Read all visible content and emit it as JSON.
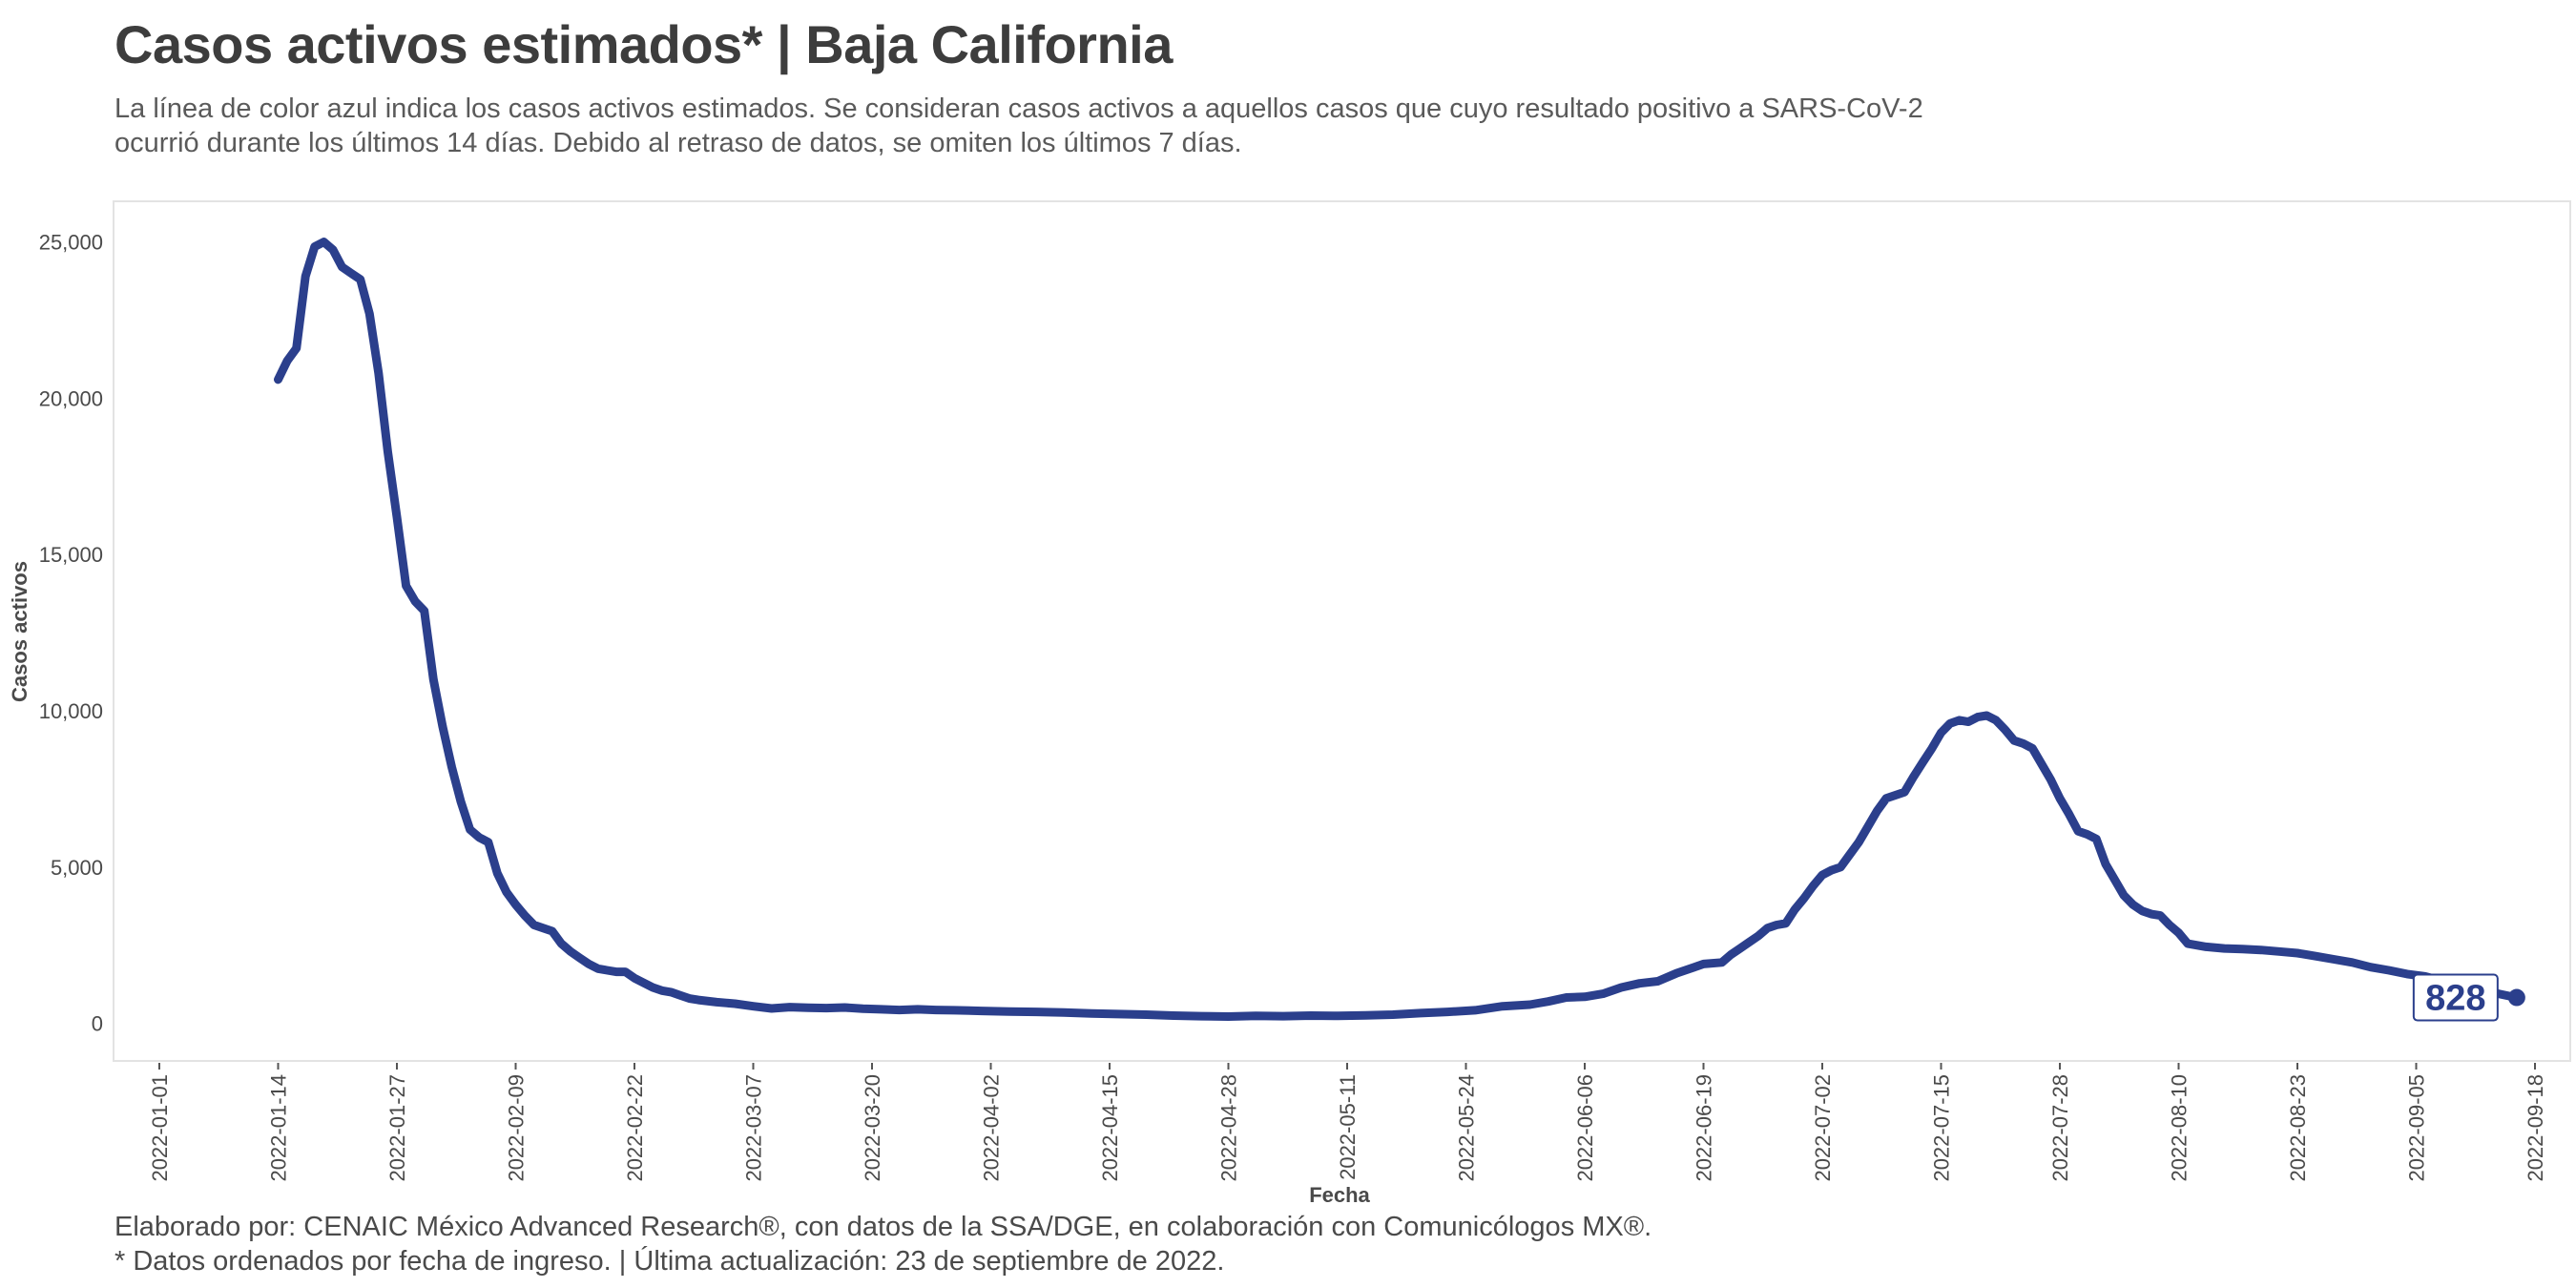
{
  "title": "Casos activos estimados* | Baja California",
  "subtitle": "La línea de color azul indica los casos activos estimados. Se consideran casos activos a aquellos casos que cuyo resultado positivo a SARS-CoV-2 ocurrió durante los últimos 14 días. Debido al retraso de datos, se omiten los últimos 7 días.",
  "footer": {
    "line1": "Elaborado por: CENAIC México Advanced Research®, con datos de la SSA/DGE, en colaboración con Comunicólogos MX®.",
    "line2": "* Datos ordenados por fecha de ingreso. | Última actualización: 23 de septiembre de 2022."
  },
  "colors": {
    "line": "#2b3f8c",
    "panel_border": "#e3e3e3",
    "label_border": "#2b3f8c"
  },
  "chart_data": {
    "type": "line",
    "xlabel": "Fecha",
    "ylabel": "Casos activos",
    "x_start": "2022-01-01",
    "x_end": "2022-09-18",
    "ylim": [
      -1200,
      26300
    ],
    "grid": false,
    "yticks": [
      0,
      5000,
      10000,
      15000,
      20000,
      25000
    ],
    "ytick_labels": [
      "0",
      "5,000",
      "10,000",
      "15,000",
      "20,000",
      "25,000"
    ],
    "xticks": [
      "2022-01-01",
      "2022-01-14",
      "2022-01-27",
      "2022-02-09",
      "2022-02-22",
      "2022-03-07",
      "2022-03-20",
      "2022-04-02",
      "2022-04-15",
      "2022-04-28",
      "2022-05-11",
      "2022-05-24",
      "2022-06-06",
      "2022-06-19",
      "2022-07-02",
      "2022-07-15",
      "2022-07-28",
      "2022-08-10",
      "2022-08-23",
      "2022-09-05",
      "2022-09-18"
    ],
    "last_label": "828",
    "series": [
      {
        "points": [
          [
            "2022-01-14",
            20600
          ],
          [
            "2022-01-15",
            21200
          ],
          [
            "2022-01-16",
            21600
          ],
          [
            "2022-01-17",
            23900
          ],
          [
            "2022-01-18",
            24850
          ],
          [
            "2022-01-19",
            25000
          ],
          [
            "2022-01-20",
            24750
          ],
          [
            "2022-01-21",
            24200
          ],
          [
            "2022-01-22",
            24000
          ],
          [
            "2022-01-23",
            23800
          ],
          [
            "2022-01-24",
            22700
          ],
          [
            "2022-01-25",
            20800
          ],
          [
            "2022-01-26",
            18300
          ],
          [
            "2022-01-27",
            16200
          ],
          [
            "2022-01-28",
            14000
          ],
          [
            "2022-01-29",
            13500
          ],
          [
            "2022-01-30",
            13200
          ],
          [
            "2022-01-31",
            11000
          ],
          [
            "2022-02-01",
            9500
          ],
          [
            "2022-02-02",
            8200
          ],
          [
            "2022-02-03",
            7100
          ],
          [
            "2022-02-04",
            6200
          ],
          [
            "2022-02-05",
            5950
          ],
          [
            "2022-02-06",
            5800
          ],
          [
            "2022-02-07",
            4800
          ],
          [
            "2022-02-08",
            4200
          ],
          [
            "2022-02-09",
            3800
          ],
          [
            "2022-02-10",
            3450
          ],
          [
            "2022-02-11",
            3150
          ],
          [
            "2022-02-12",
            3050
          ],
          [
            "2022-02-13",
            2950
          ],
          [
            "2022-02-14",
            2550
          ],
          [
            "2022-02-15",
            2300
          ],
          [
            "2022-02-16",
            2100
          ],
          [
            "2022-02-17",
            1900
          ],
          [
            "2022-02-18",
            1750
          ],
          [
            "2022-02-19",
            1700
          ],
          [
            "2022-02-20",
            1650
          ],
          [
            "2022-02-21",
            1650
          ],
          [
            "2022-02-22",
            1450
          ],
          [
            "2022-02-23",
            1300
          ],
          [
            "2022-02-24",
            1150
          ],
          [
            "2022-02-25",
            1050
          ],
          [
            "2022-02-26",
            1000
          ],
          [
            "2022-02-27",
            900
          ],
          [
            "2022-02-28",
            800
          ],
          [
            "2022-03-01",
            750
          ],
          [
            "2022-03-03",
            680
          ],
          [
            "2022-03-05",
            630
          ],
          [
            "2022-03-07",
            550
          ],
          [
            "2022-03-09",
            480
          ],
          [
            "2022-03-11",
            520
          ],
          [
            "2022-03-13",
            500
          ],
          [
            "2022-03-15",
            490
          ],
          [
            "2022-03-17",
            510
          ],
          [
            "2022-03-19",
            470
          ],
          [
            "2022-03-21",
            450
          ],
          [
            "2022-03-23",
            430
          ],
          [
            "2022-03-25",
            450
          ],
          [
            "2022-03-27",
            430
          ],
          [
            "2022-03-29",
            420
          ],
          [
            "2022-04-01",
            400
          ],
          [
            "2022-04-04",
            380
          ],
          [
            "2022-04-07",
            370
          ],
          [
            "2022-04-10",
            350
          ],
          [
            "2022-04-13",
            320
          ],
          [
            "2022-04-16",
            300
          ],
          [
            "2022-04-19",
            280
          ],
          [
            "2022-04-22",
            250
          ],
          [
            "2022-04-25",
            230
          ],
          [
            "2022-04-28",
            220
          ],
          [
            "2022-05-01",
            240
          ],
          [
            "2022-05-04",
            230
          ],
          [
            "2022-05-07",
            250
          ],
          [
            "2022-05-10",
            240
          ],
          [
            "2022-05-13",
            260
          ],
          [
            "2022-05-16",
            280
          ],
          [
            "2022-05-19",
            330
          ],
          [
            "2022-05-22",
            370
          ],
          [
            "2022-05-25",
            420
          ],
          [
            "2022-05-28",
            550
          ],
          [
            "2022-05-31",
            600
          ],
          [
            "2022-06-02",
            700
          ],
          [
            "2022-06-04",
            830
          ],
          [
            "2022-06-06",
            850
          ],
          [
            "2022-06-08",
            950
          ],
          [
            "2022-06-10",
            1150
          ],
          [
            "2022-06-12",
            1280
          ],
          [
            "2022-06-14",
            1350
          ],
          [
            "2022-06-16",
            1600
          ],
          [
            "2022-06-18",
            1800
          ],
          [
            "2022-06-19",
            1900
          ],
          [
            "2022-06-21",
            1950
          ],
          [
            "2022-06-22",
            2200
          ],
          [
            "2022-06-23",
            2400
          ],
          [
            "2022-06-24",
            2600
          ],
          [
            "2022-06-25",
            2800
          ],
          [
            "2022-06-26",
            3050
          ],
          [
            "2022-06-27",
            3150
          ],
          [
            "2022-06-28",
            3200
          ],
          [
            "2022-06-29",
            3650
          ],
          [
            "2022-06-30",
            4000
          ],
          [
            "2022-07-01",
            4400
          ],
          [
            "2022-07-02",
            4750
          ],
          [
            "2022-07-03",
            4900
          ],
          [
            "2022-07-04",
            5000
          ],
          [
            "2022-07-05",
            5400
          ],
          [
            "2022-07-06",
            5800
          ],
          [
            "2022-07-07",
            6300
          ],
          [
            "2022-07-08",
            6800
          ],
          [
            "2022-07-09",
            7200
          ],
          [
            "2022-07-10",
            7300
          ],
          [
            "2022-07-11",
            7400
          ],
          [
            "2022-07-12",
            7900
          ],
          [
            "2022-07-13",
            8350
          ],
          [
            "2022-07-14",
            8800
          ],
          [
            "2022-07-15",
            9300
          ],
          [
            "2022-07-16",
            9600
          ],
          [
            "2022-07-17",
            9700
          ],
          [
            "2022-07-18",
            9650
          ],
          [
            "2022-07-19",
            9800
          ],
          [
            "2022-07-20",
            9850
          ],
          [
            "2022-07-21",
            9700
          ],
          [
            "2022-07-22",
            9400
          ],
          [
            "2022-07-23",
            9050
          ],
          [
            "2022-07-24",
            8950
          ],
          [
            "2022-07-25",
            8800
          ],
          [
            "2022-07-26",
            8300
          ],
          [
            "2022-07-27",
            7800
          ],
          [
            "2022-07-28",
            7200
          ],
          [
            "2022-07-29",
            6700
          ],
          [
            "2022-07-30",
            6150
          ],
          [
            "2022-07-31",
            6050
          ],
          [
            "2022-08-01",
            5900
          ],
          [
            "2022-08-02",
            5100
          ],
          [
            "2022-08-03",
            4600
          ],
          [
            "2022-08-04",
            4100
          ],
          [
            "2022-08-05",
            3800
          ],
          [
            "2022-08-06",
            3600
          ],
          [
            "2022-08-07",
            3500
          ],
          [
            "2022-08-08",
            3450
          ],
          [
            "2022-08-09",
            3150
          ],
          [
            "2022-08-10",
            2900
          ],
          [
            "2022-08-11",
            2550
          ],
          [
            "2022-08-13",
            2450
          ],
          [
            "2022-08-15",
            2400
          ],
          [
            "2022-08-17",
            2380
          ],
          [
            "2022-08-19",
            2350
          ],
          [
            "2022-08-21",
            2300
          ],
          [
            "2022-08-23",
            2250
          ],
          [
            "2022-08-25",
            2150
          ],
          [
            "2022-08-27",
            2050
          ],
          [
            "2022-08-29",
            1950
          ],
          [
            "2022-08-31",
            1800
          ],
          [
            "2022-09-02",
            1700
          ],
          [
            "2022-09-04",
            1580
          ],
          [
            "2022-09-06",
            1500
          ],
          [
            "2022-09-08",
            1350
          ],
          [
            "2022-09-10",
            1200
          ],
          [
            "2022-09-12",
            1050
          ],
          [
            "2022-09-14",
            950
          ],
          [
            "2022-09-16",
            828
          ]
        ]
      }
    ]
  }
}
